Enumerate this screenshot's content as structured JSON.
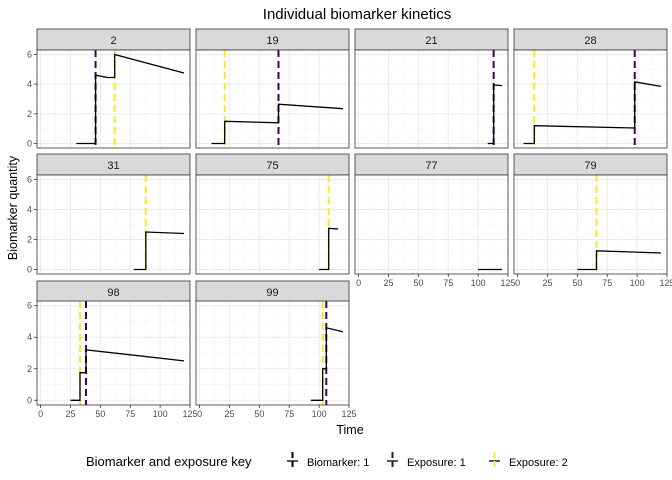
{
  "chart_data": {
    "type": "line",
    "title": "Individual biomarker kinetics",
    "xlabel": "Time",
    "ylabel": "Biomarker quantity",
    "xlim": [
      -3,
      125
    ],
    "ylim": [
      -0.3,
      6.3
    ],
    "xticks": [
      0,
      25,
      50,
      75,
      100,
      125
    ],
    "yticks": [
      0,
      2,
      4,
      6
    ],
    "colors": {
      "biomarker": "#000000",
      "exposure1": "#440154",
      "exposure2": "#FDE725",
      "strip": "#d9d9d9",
      "grid_major": "#ebebeb",
      "grid_minor": "#f5f5f5"
    },
    "legend": {
      "title": "Biomarker and exposure key",
      "position": "bottom",
      "items": [
        {
          "label": "Biomarker: 1",
          "key": "biomarker"
        },
        {
          "label": "Exposure: 1",
          "key": "exposure1"
        },
        {
          "label": "Exposure: 2",
          "key": "exposure2"
        }
      ]
    },
    "panels": [
      {
        "id": "2",
        "exposure1": [
          46
        ],
        "exposure2": [
          62
        ],
        "biomarker": [
          [
            30,
            0
          ],
          [
            46,
            0
          ],
          [
            46,
            4.6
          ],
          [
            56,
            4.45
          ],
          [
            62,
            4.45
          ],
          [
            62,
            6.0
          ],
          [
            120,
            4.75
          ]
        ]
      },
      {
        "id": "19",
        "exposure1": [
          66
        ],
        "exposure2": [
          21
        ],
        "biomarker": [
          [
            10,
            0
          ],
          [
            21,
            0
          ],
          [
            21,
            1.5
          ],
          [
            66,
            1.4
          ],
          [
            66,
            2.65
          ],
          [
            120,
            2.35
          ]
        ]
      },
      {
        "id": "21",
        "exposure1": [
          113
        ],
        "exposure2": [],
        "biomarker": [
          [
            108,
            0
          ],
          [
            113,
            0
          ],
          [
            113,
            3.95
          ],
          [
            120,
            3.9
          ]
        ]
      },
      {
        "id": "28",
        "exposure1": [
          98
        ],
        "exposure2": [
          14
        ],
        "biomarker": [
          [
            5,
            0
          ],
          [
            14,
            0
          ],
          [
            14,
            1.2
          ],
          [
            98,
            1.05
          ],
          [
            98,
            4.15
          ],
          [
            120,
            3.85
          ]
        ]
      },
      {
        "id": "31",
        "exposure1": [],
        "exposure2": [
          88
        ],
        "biomarker": [
          [
            78,
            0
          ],
          [
            88,
            0
          ],
          [
            88,
            2.5
          ],
          [
            120,
            2.4
          ]
        ]
      },
      {
        "id": "75",
        "exposure1": [],
        "exposure2": [
          108
        ],
        "biomarker": [
          [
            100,
            0
          ],
          [
            108,
            0
          ],
          [
            108,
            2.75
          ],
          [
            116,
            2.7
          ]
        ]
      },
      {
        "id": "77",
        "exposure1": [],
        "exposure2": [],
        "biomarker": [
          [
            100,
            0
          ],
          [
            120,
            0
          ]
        ]
      },
      {
        "id": "79",
        "exposure1": [],
        "exposure2": [
          66
        ],
        "biomarker": [
          [
            50,
            0
          ],
          [
            66,
            0
          ],
          [
            66,
            1.25
          ],
          [
            120,
            1.1
          ]
        ]
      },
      {
        "id": "98",
        "exposure1": [
          38
        ],
        "exposure2": [
          33
        ],
        "biomarker": [
          [
            25,
            0
          ],
          [
            33,
            0
          ],
          [
            33,
            1.75
          ],
          [
            38,
            1.75
          ],
          [
            38,
            3.2
          ],
          [
            120,
            2.5
          ]
        ]
      },
      {
        "id": "99",
        "exposure1": [
          106
        ],
        "exposure2": [
          103
        ],
        "biomarker": [
          [
            93,
            0
          ],
          [
            103,
            0
          ],
          [
            103,
            2.0
          ],
          [
            106,
            2.0
          ],
          [
            106,
            4.6
          ],
          [
            120,
            4.35
          ]
        ]
      }
    ]
  }
}
